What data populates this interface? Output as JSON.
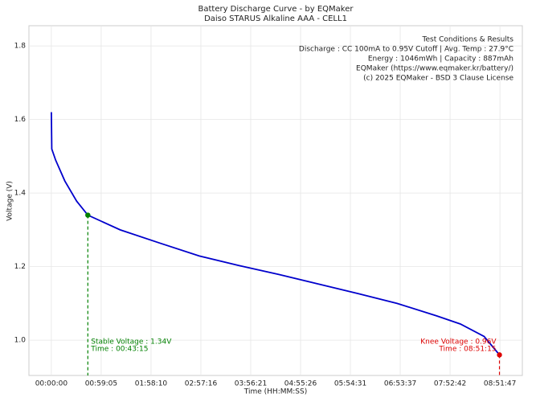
{
  "chart_data": {
    "type": "line",
    "title": "Battery Discharge Curve - by EQMaker",
    "subtitle": "Daiso STARUS Alkaline AAA - CELL1",
    "x_label": "Time (HH:MM:SS)",
    "y_label": "Voltage (V)",
    "x": [
      0,
      30,
      300,
      957,
      1800,
      2595,
      4895,
      7710,
      10524,
      13338,
      16152,
      18966,
      21780,
      24594,
      27407,
      29096,
      30784,
      31875,
      31907
    ],
    "series": [
      {
        "name": "Voltage",
        "color": "#0000cc",
        "values": [
          1.62,
          1.52,
          1.49,
          1.433,
          1.378,
          1.34,
          1.3,
          1.264,
          1.229,
          1.203,
          1.179,
          1.153,
          1.127,
          1.1,
          1.066,
          1.044,
          1.01,
          0.96,
          0.96
        ]
      }
    ],
    "xlim": [
      -1595,
      33502
    ],
    "ylim": [
      0.904,
      1.855
    ],
    "xticks": [
      {
        "value": 0,
        "label": "00:00:00"
      },
      {
        "value": 3545,
        "label": "00:59:05"
      },
      {
        "value": 7090,
        "label": "01:58:10"
      },
      {
        "value": 10636,
        "label": "02:57:16"
      },
      {
        "value": 14181,
        "label": "03:56:21"
      },
      {
        "value": 17726,
        "label": "04:55:26"
      },
      {
        "value": 21271,
        "label": "05:54:31"
      },
      {
        "value": 24817,
        "label": "06:53:37"
      },
      {
        "value": 28362,
        "label": "07:52:42"
      },
      {
        "value": 31907,
        "label": "08:51:47"
      }
    ],
    "yticks": [
      {
        "value": 1.0,
        "label": "1.0"
      },
      1.2,
      1.4,
      1.6,
      1.8
    ],
    "grid": true,
    "markers": [
      {
        "x": 2595,
        "y": 1.34,
        "color": "#008000",
        "side": "right",
        "lines": [
          "Stable Voltage : 1.34V",
          "Time : 00:43:15"
        ]
      },
      {
        "x": 31875,
        "y": 0.96,
        "color": "#dd0000",
        "side": "left",
        "lines": [
          "Knee Voltage : 0.96V",
          "Time : 08:51:15"
        ]
      }
    ],
    "info": [
      "Test Conditions & Results",
      "Discharge : CC 100mA to 0.95V Cutoff | Avg. Temp : 27.9°C",
      "Energy : 1046mWh | Capacity : 887mAh",
      "EQMaker (https://www.eqmaker.kr/battery/)",
      "(c) 2025 EQMaker - BSD 3 Clause License"
    ]
  }
}
